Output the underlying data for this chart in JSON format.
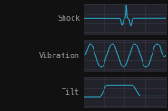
{
  "background_color": "#111111",
  "panel_bg": "#22222a",
  "grid_color": "#383848",
  "line_color": "#2899b8",
  "label_color": "#999999",
  "labels": [
    "Shock",
    "Vibration",
    "Tilt"
  ],
  "label_fontsize": 6.0,
  "line_width": 0.8,
  "fig_width": 1.85,
  "fig_height": 1.22,
  "dpi": 100
}
